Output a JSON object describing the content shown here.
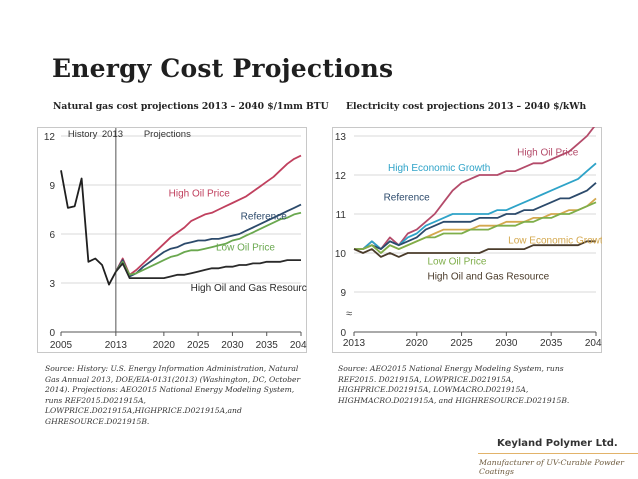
{
  "slide": {
    "title": "Energy Cost Projections",
    "source_left": "Source: History: U.S. Energy Information Administration, Natural Gas Annual 2013, DOE/EIA-0131(2013) (Washington, DC, October 2014). Projections: AEO2015 National Energy Modeling System, runs REF2015.D021915A, LOWPRICE.D021915A,HIGHPRICE.D021915A,and GHRESOURCE.D021915B.",
    "source_right": "Source: AEO2015 National Energy Modeling System, runs REF2015. D021915A, LOWPRICE.D021915A, HIGHPRICE.D021915A, LOWMACRO.D021915A, HIGHMACRO.D021915A, and HIGHRESOURCE.D021915B.",
    "brand": "Keyland Polymer Ltd.",
    "tagline": "Manufacturer of UV-Curable Powder Coatings"
  },
  "chart_data": [
    {
      "type": "line",
      "title": "Natural gas cost projections 2013 – 2040 $/1mm BTU",
      "xlim": [
        2005,
        2040
      ],
      "ylim": [
        0,
        12
      ],
      "x_ticks": [
        2005,
        2013,
        2020,
        2025,
        2030,
        2035,
        2040
      ],
      "x_tick_labels": [
        "2005",
        "2013",
        "2020",
        "2025",
        "2030",
        "2035",
        "2040"
      ],
      "y_ticks": [
        0,
        3,
        6,
        9,
        12
      ],
      "y_tick_labels": [
        "0",
        "3",
        "6",
        "9",
        "12"
      ],
      "grid": "horizontal",
      "divider_x": 2013,
      "annotations": [
        "History",
        "2013",
        "Projections"
      ],
      "series": [
        {
          "name": "History",
          "label": "",
          "color": "#1f1f1f",
          "x": [
            2005,
            2006,
            2007,
            2008,
            2009,
            2010,
            2011,
            2012,
            2013
          ],
          "values": [
            9.9,
            7.6,
            7.7,
            9.4,
            4.3,
            4.5,
            4.1,
            2.9,
            3.7
          ]
        },
        {
          "name": "High Oil Price",
          "label": "High Oil Price",
          "color": "#c0405e",
          "x": [
            2013,
            2014,
            2015,
            2016,
            2017,
            2018,
            2019,
            2020,
            2021,
            2022,
            2023,
            2024,
            2025,
            2026,
            2027,
            2028,
            2029,
            2030,
            2031,
            2032,
            2033,
            2034,
            2035,
            2036,
            2037,
            2038,
            2039,
            2040
          ],
          "values": [
            3.7,
            4.5,
            3.5,
            3.8,
            4.2,
            4.6,
            5.0,
            5.4,
            5.8,
            6.1,
            6.4,
            6.8,
            7.0,
            7.2,
            7.3,
            7.5,
            7.7,
            7.9,
            8.1,
            8.3,
            8.6,
            8.9,
            9.2,
            9.5,
            9.9,
            10.3,
            10.6,
            10.8
          ]
        },
        {
          "name": "Reference",
          "label": "Reference",
          "color": "#2c4a6b",
          "x": [
            2013,
            2014,
            2015,
            2016,
            2017,
            2018,
            2019,
            2020,
            2021,
            2022,
            2023,
            2024,
            2025,
            2026,
            2027,
            2028,
            2029,
            2030,
            2031,
            2032,
            2033,
            2034,
            2035,
            2036,
            2037,
            2038,
            2039,
            2040
          ],
          "values": [
            3.7,
            4.4,
            3.4,
            3.6,
            4.0,
            4.3,
            4.6,
            4.9,
            5.1,
            5.2,
            5.4,
            5.5,
            5.6,
            5.6,
            5.7,
            5.7,
            5.8,
            5.9,
            6.0,
            6.2,
            6.4,
            6.6,
            6.8,
            7.0,
            7.2,
            7.4,
            7.6,
            7.8
          ]
        },
        {
          "name": "Low Oil Price",
          "label": "Low Oil Price",
          "color": "#6aa84f",
          "x": [
            2013,
            2014,
            2015,
            2016,
            2017,
            2018,
            2019,
            2020,
            2021,
            2022,
            2023,
            2024,
            2025,
            2026,
            2027,
            2028,
            2029,
            2030,
            2031,
            2032,
            2033,
            2034,
            2035,
            2036,
            2037,
            2038,
            2039,
            2040
          ],
          "values": [
            3.7,
            4.3,
            3.5,
            3.6,
            3.8,
            4.0,
            4.2,
            4.4,
            4.6,
            4.7,
            4.9,
            5.0,
            5.0,
            5.1,
            5.2,
            5.3,
            5.4,
            5.6,
            5.7,
            5.9,
            6.1,
            6.3,
            6.5,
            6.7,
            6.9,
            7.0,
            7.2,
            7.3
          ]
        },
        {
          "name": "High Oil and Gas Resource",
          "label": "High Oil and Gas Resource",
          "color": "#2a2a2a",
          "x": [
            2013,
            2014,
            2015,
            2016,
            2017,
            2018,
            2019,
            2020,
            2021,
            2022,
            2023,
            2024,
            2025,
            2026,
            2027,
            2028,
            2029,
            2030,
            2031,
            2032,
            2033,
            2034,
            2035,
            2036,
            2037,
            2038,
            2039,
            2040
          ],
          "values": [
            3.7,
            4.2,
            3.3,
            3.3,
            3.3,
            3.3,
            3.3,
            3.3,
            3.4,
            3.5,
            3.5,
            3.6,
            3.7,
            3.8,
            3.9,
            3.9,
            4.0,
            4.0,
            4.1,
            4.1,
            4.2,
            4.2,
            4.3,
            4.3,
            4.3,
            4.4,
            4.4,
            4.4
          ]
        }
      ]
    },
    {
      "type": "line",
      "title": "Electricity cost projections 2013 – 2040 $/kWh",
      "xlim": [
        2013,
        2040
      ],
      "ylim": [
        8,
        13
      ],
      "x_ticks": [
        2013,
        2020,
        2025,
        2030,
        2035,
        2040
      ],
      "x_tick_labels": [
        "2013",
        "2020",
        "2025",
        "2030",
        "2035",
        "2040"
      ],
      "y_ticks": [
        0,
        9,
        10,
        11,
        12,
        13
      ],
      "y_tick_labels": [
        "0",
        "9",
        "10",
        "11",
        "12",
        "13"
      ],
      "axis_break": "≈",
      "grid": "horizontal",
      "series": [
        {
          "name": "High Oil Price",
          "label": "High Oil Price",
          "color": "#b44b6a",
          "x": [
            2013,
            2014,
            2015,
            2016,
            2017,
            2018,
            2019,
            2020,
            2021,
            2022,
            2023,
            2024,
            2025,
            2026,
            2027,
            2028,
            2029,
            2030,
            2031,
            2032,
            2033,
            2034,
            2035,
            2036,
            2037,
            2038,
            2039,
            2040
          ],
          "values": [
            10.1,
            10.1,
            10.3,
            10.1,
            10.4,
            10.2,
            10.5,
            10.6,
            10.8,
            11.0,
            11.3,
            11.6,
            11.8,
            11.9,
            12.0,
            12.0,
            12.0,
            12.1,
            12.1,
            12.2,
            12.3,
            12.3,
            12.4,
            12.5,
            12.6,
            12.8,
            13.0,
            13.3
          ]
        },
        {
          "name": "High Economic Growth",
          "label": "High Economic Growth",
          "color": "#2ea3c8",
          "x": [
            2013,
            2014,
            2015,
            2016,
            2017,
            2018,
            2019,
            2020,
            2021,
            2022,
            2023,
            2024,
            2025,
            2026,
            2027,
            2028,
            2029,
            2030,
            2031,
            2032,
            2033,
            2034,
            2035,
            2036,
            2037,
            2038,
            2039,
            2040
          ],
          "values": [
            10.1,
            10.1,
            10.3,
            10.1,
            10.3,
            10.2,
            10.4,
            10.5,
            10.7,
            10.8,
            10.9,
            11.0,
            11.0,
            11.0,
            11.0,
            11.0,
            11.1,
            11.1,
            11.2,
            11.3,
            11.4,
            11.5,
            11.6,
            11.7,
            11.8,
            11.9,
            12.1,
            12.3
          ]
        },
        {
          "name": "Reference",
          "label": "Reference",
          "color": "#2c4a6b",
          "x": [
            2013,
            2014,
            2015,
            2016,
            2017,
            2018,
            2019,
            2020,
            2021,
            2022,
            2023,
            2024,
            2025,
            2026,
            2027,
            2028,
            2029,
            2030,
            2031,
            2032,
            2033,
            2034,
            2035,
            2036,
            2037,
            2038,
            2039,
            2040
          ],
          "values": [
            10.1,
            10.1,
            10.2,
            10.1,
            10.3,
            10.2,
            10.3,
            10.4,
            10.6,
            10.7,
            10.8,
            10.8,
            10.8,
            10.8,
            10.9,
            10.9,
            10.9,
            11.0,
            11.0,
            11.1,
            11.1,
            11.2,
            11.3,
            11.4,
            11.4,
            11.5,
            11.6,
            11.8
          ]
        },
        {
          "name": "Low Economic Growth",
          "label": "Low Economic Growth",
          "color": "#d4a84e",
          "x": [
            2013,
            2014,
            2015,
            2016,
            2017,
            2018,
            2019,
            2020,
            2021,
            2022,
            2023,
            2024,
            2025,
            2026,
            2027,
            2028,
            2029,
            2030,
            2031,
            2032,
            2033,
            2034,
            2035,
            2036,
            2037,
            2038,
            2039,
            2040
          ],
          "values": [
            10.1,
            10.1,
            10.2,
            10.0,
            10.2,
            10.1,
            10.2,
            10.3,
            10.4,
            10.5,
            10.6,
            10.6,
            10.6,
            10.6,
            10.7,
            10.7,
            10.7,
            10.8,
            10.8,
            10.8,
            10.9,
            10.9,
            11.0,
            11.0,
            11.1,
            11.1,
            11.2,
            11.4
          ]
        },
        {
          "name": "Low Oil Price",
          "label": "Low Oil Price",
          "color": "#7fae4a",
          "x": [
            2013,
            2014,
            2015,
            2016,
            2017,
            2018,
            2019,
            2020,
            2021,
            2022,
            2023,
            2024,
            2025,
            2026,
            2027,
            2028,
            2029,
            2030,
            2031,
            2032,
            2033,
            2034,
            2035,
            2036,
            2037,
            2038,
            2039,
            2040
          ],
          "values": [
            10.1,
            10.1,
            10.2,
            10.0,
            10.2,
            10.1,
            10.2,
            10.3,
            10.4,
            10.4,
            10.5,
            10.5,
            10.5,
            10.6,
            10.6,
            10.6,
            10.7,
            10.7,
            10.7,
            10.8,
            10.8,
            10.9,
            10.9,
            11.0,
            11.0,
            11.1,
            11.2,
            11.3
          ]
        },
        {
          "name": "High Oil and Gas Resource",
          "label": "High Oil and Gas Resource",
          "color": "#4a3b2a",
          "x": [
            2013,
            2014,
            2015,
            2016,
            2017,
            2018,
            2019,
            2020,
            2021,
            2022,
            2023,
            2024,
            2025,
            2026,
            2027,
            2028,
            2029,
            2030,
            2031,
            2032,
            2033,
            2034,
            2035,
            2036,
            2037,
            2038,
            2039,
            2040
          ],
          "values": [
            10.1,
            10.0,
            10.1,
            9.9,
            10.0,
            9.9,
            10.0,
            10.0,
            10.0,
            10.0,
            10.0,
            10.0,
            10.0,
            10.0,
            10.0,
            10.1,
            10.1,
            10.1,
            10.1,
            10.1,
            10.2,
            10.2,
            10.2,
            10.2,
            10.2,
            10.2,
            10.3,
            10.3
          ]
        }
      ]
    }
  ]
}
